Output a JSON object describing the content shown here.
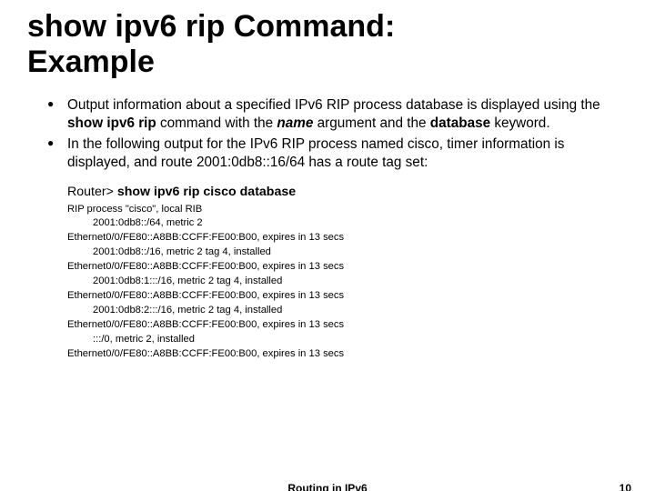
{
  "title_line1": "show ipv6 rip Command:",
  "title_line2": "Example",
  "bullets": [
    {
      "pre": "Output information about a specified IPv6 RIP process database is displayed using the ",
      "cmd": "show ipv6 rip",
      "mid1": " command with the ",
      "arg": "name",
      "mid2": " argument and the ",
      "kw": "database",
      "post": " keyword."
    },
    {
      "text": "In the following output for the IPv6 RIP process named cisco, timer information is displayed, and route 2001:0db8::16/64 has a route tag set:"
    }
  ],
  "command": {
    "prompt": "Router> ",
    "text": "show ipv6 rip cisco database"
  },
  "output": [
    {
      "t": "RIP process \"cisco\", local RIB",
      "i": false
    },
    {
      "t": "2001:0db8::/64, metric 2",
      "i": true
    },
    {
      "t": "Ethernet0/0/FE80::A8BB:CCFF:FE00:B00, expires in 13 secs",
      "i": false
    },
    {
      "t": "2001:0db8::/16, metric 2 tag 4, installed",
      "i": true
    },
    {
      "t": "Ethernet0/0/FE80::A8BB:CCFF:FE00:B00, expires in 13 secs",
      "i": false
    },
    {
      "t": "2001:0db8:1:::/16, metric 2 tag 4, installed",
      "i": true
    },
    {
      "t": "Ethernet0/0/FE80::A8BB:CCFF:FE00:B00, expires in 13 secs",
      "i": false
    },
    {
      "t": "2001:0db8:2:::/16, metric 2 tag 4, installed",
      "i": true
    },
    {
      "t": "Ethernet0/0/FE80::A8BB:CCFF:FE00:B00, expires in 13 secs",
      "i": false
    },
    {
      "t": ":::/0, metric 2, installed",
      "i": true
    },
    {
      "t": "Ethernet0/0/FE80::A8BB:CCFF:FE00:B00, expires in 13 secs",
      "i": false
    }
  ],
  "footer": {
    "title": "Routing in IPv6",
    "num": "10"
  },
  "colors": {
    "text": "#000000",
    "bg": "#ffffff"
  }
}
